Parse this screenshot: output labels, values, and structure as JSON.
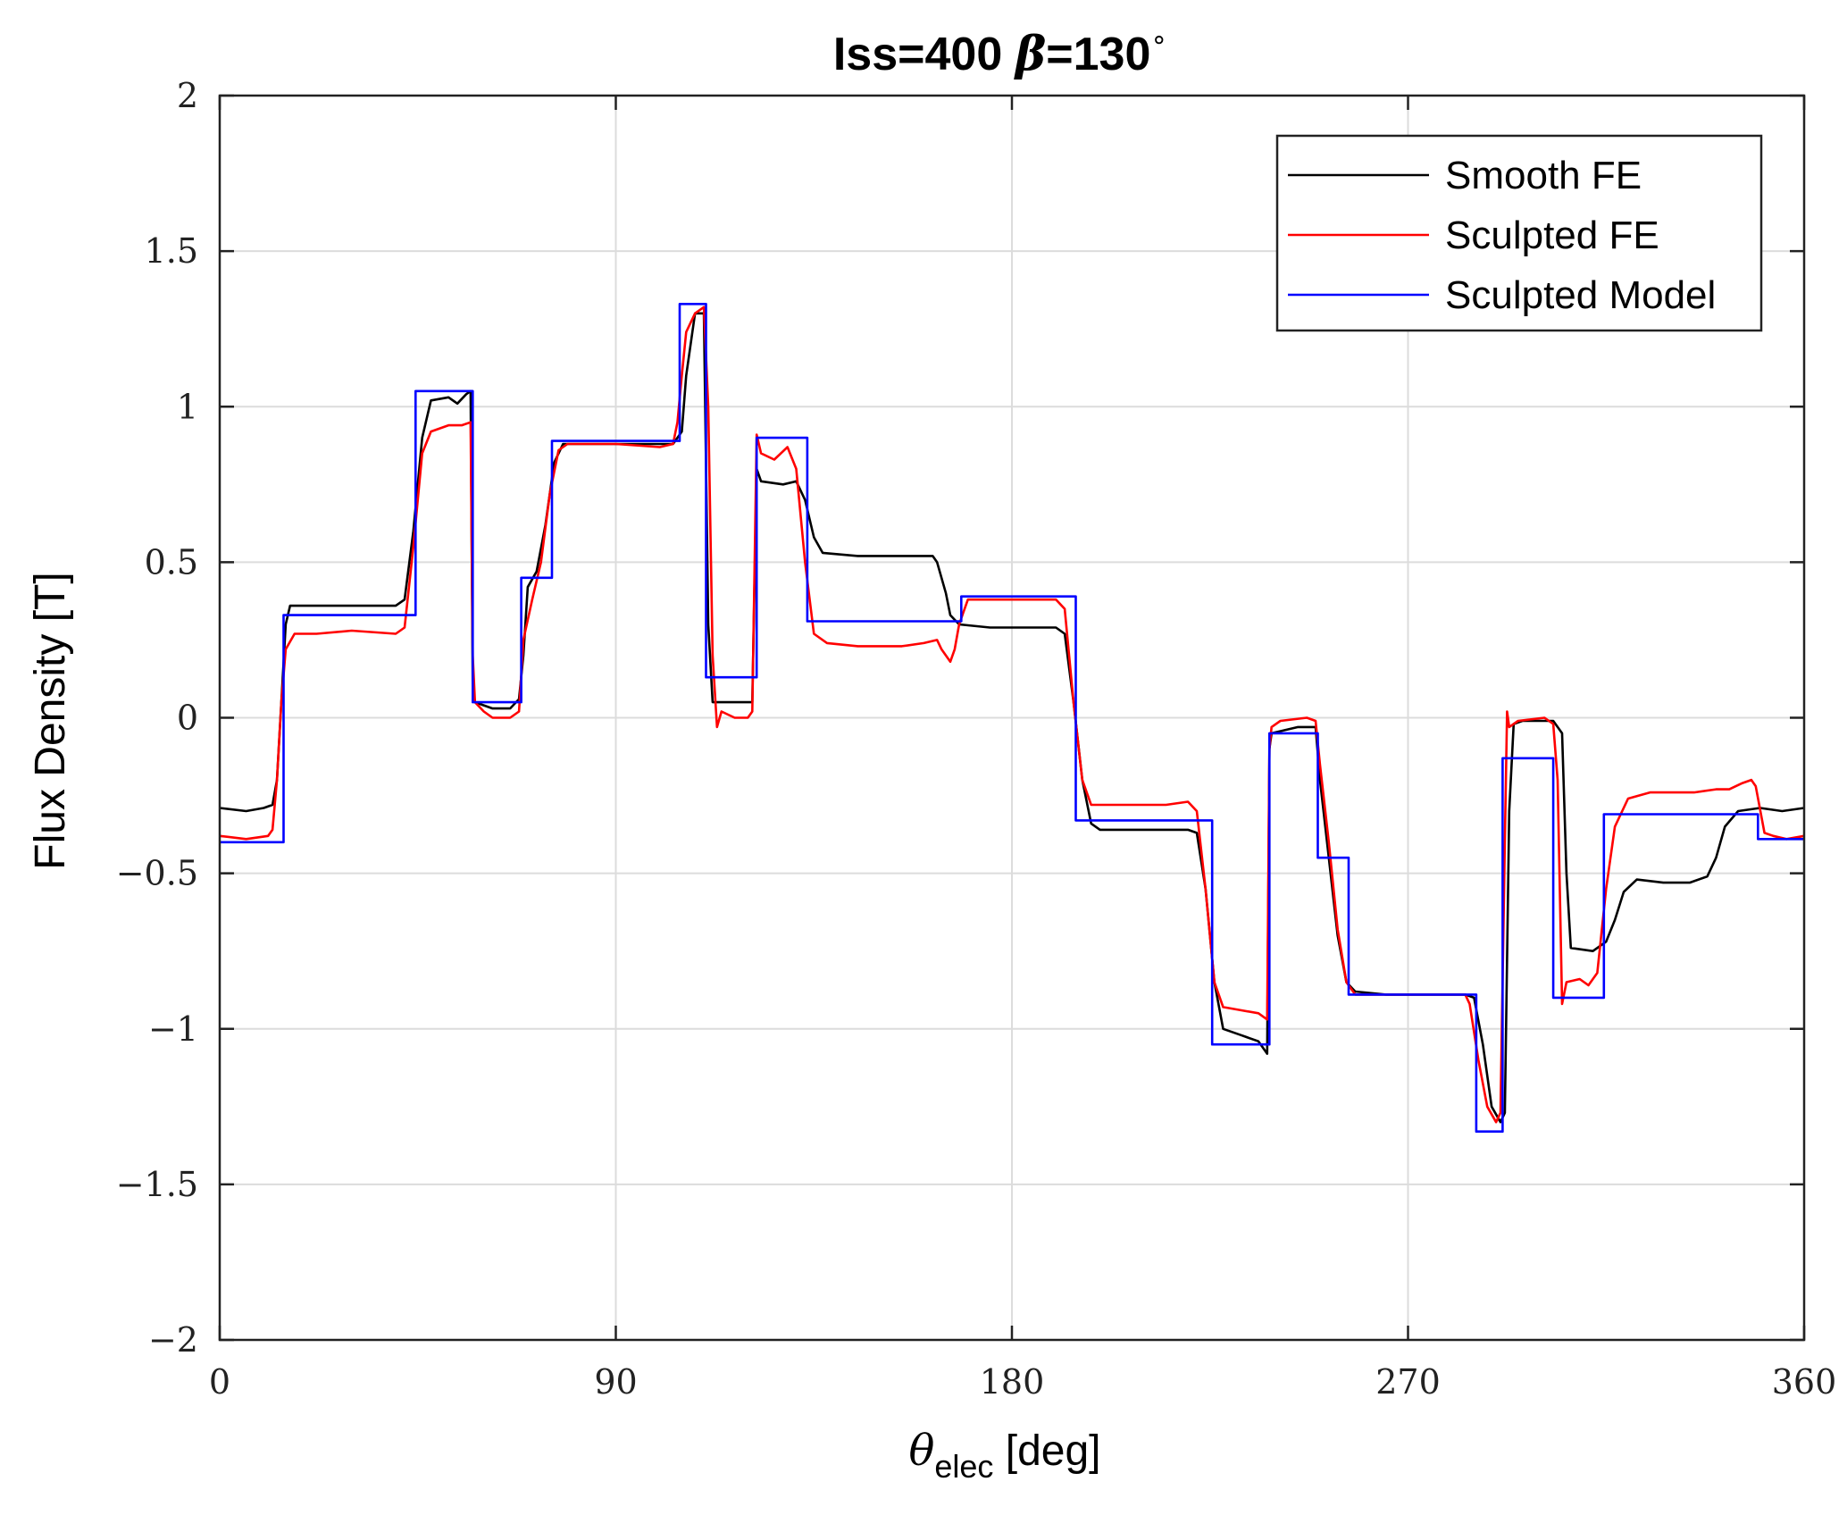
{
  "chart_data": {
    "type": "line",
    "title": "Iss=400",
    "title_symbol": "β",
    "title_suffix": "=130",
    "title_degree": "∘",
    "xlabel_symbol": "θ",
    "xlabel_sub": "elec",
    "xlabel_suffix": " [deg]",
    "ylabel": "Flux Density [T]",
    "xlim": [
      0,
      360
    ],
    "ylim": [
      -2,
      2
    ],
    "xticks": [
      0,
      90,
      180,
      270,
      360
    ],
    "yticks": [
      -2,
      -1.5,
      -1,
      -0.5,
      0,
      0.5,
      1,
      1.5,
      2
    ],
    "xtick_labels": [
      "0",
      "90",
      "180",
      "270",
      "360"
    ],
    "ytick_labels": [
      "−2",
      "−1.5",
      "−1",
      "−0.5",
      "0",
      "0.5",
      "1",
      "1.5",
      "2"
    ],
    "grid": true,
    "legend_position": "top-right",
    "series": [
      {
        "name": "Smooth FE",
        "color": "#000000",
        "points": [
          [
            0,
            -0.29
          ],
          [
            6,
            -0.3
          ],
          [
            10,
            -0.29
          ],
          [
            12,
            -0.28
          ],
          [
            13,
            -0.2
          ],
          [
            14,
            0.05
          ],
          [
            15,
            0.3
          ],
          [
            16,
            0.36
          ],
          [
            20,
            0.36
          ],
          [
            30,
            0.36
          ],
          [
            40,
            0.36
          ],
          [
            42,
            0.38
          ],
          [
            44,
            0.6
          ],
          [
            46,
            0.9
          ],
          [
            48,
            1.02
          ],
          [
            52,
            1.03
          ],
          [
            54,
            1.01
          ],
          [
            56,
            1.04
          ],
          [
            57,
            1.05
          ],
          [
            57.5,
            0.1
          ],
          [
            58,
            0.05
          ],
          [
            62,
            0.03
          ],
          [
            66,
            0.03
          ],
          [
            68,
            0.06
          ],
          [
            69,
            0.2
          ],
          [
            70,
            0.42
          ],
          [
            72,
            0.47
          ],
          [
            74,
            0.62
          ],
          [
            76,
            0.82
          ],
          [
            78,
            0.88
          ],
          [
            85,
            0.88
          ],
          [
            95,
            0.88
          ],
          [
            103,
            0.88
          ],
          [
            105,
            0.92
          ],
          [
            106,
            1.1
          ],
          [
            108,
            1.3
          ],
          [
            110,
            1.3
          ],
          [
            111,
            0.3
          ],
          [
            112,
            0.05
          ],
          [
            118,
            0.05
          ],
          [
            121,
            0.05
          ],
          [
            122,
            0.8
          ],
          [
            123,
            0.76
          ],
          [
            128,
            0.75
          ],
          [
            131,
            0.76
          ],
          [
            133,
            0.7
          ],
          [
            135,
            0.58
          ],
          [
            137,
            0.53
          ],
          [
            145,
            0.52
          ],
          [
            155,
            0.52
          ],
          [
            162,
            0.52
          ],
          [
            163,
            0.5
          ],
          [
            165,
            0.4
          ],
          [
            166,
            0.33
          ],
          [
            168,
            0.3
          ],
          [
            175,
            0.29
          ],
          [
            185,
            0.29
          ],
          [
            190,
            0.29
          ],
          [
            192,
            0.27
          ],
          [
            194,
            0.05
          ],
          [
            196,
            -0.2
          ],
          [
            198,
            -0.34
          ],
          [
            200,
            -0.36
          ],
          [
            210,
            -0.36
          ],
          [
            220,
            -0.36
          ],
          [
            222,
            -0.37
          ],
          [
            224,
            -0.55
          ],
          [
            226,
            -0.85
          ],
          [
            228,
            -1.0
          ],
          [
            232,
            -1.02
          ],
          [
            236,
            -1.04
          ],
          [
            238,
            -1.08
          ],
          [
            238.5,
            -0.1
          ],
          [
            239,
            -0.05
          ],
          [
            245,
            -0.03
          ],
          [
            249,
            -0.03
          ],
          [
            250,
            -0.2
          ],
          [
            252,
            -0.45
          ],
          [
            254,
            -0.7
          ],
          [
            256,
            -0.85
          ],
          [
            258,
            -0.88
          ],
          [
            265,
            -0.89
          ],
          [
            275,
            -0.89
          ],
          [
            283,
            -0.89
          ],
          [
            285,
            -0.9
          ],
          [
            287,
            -1.05
          ],
          [
            289,
            -1.25
          ],
          [
            291,
            -1.3
          ],
          [
            292,
            -1.27
          ],
          [
            293,
            -0.3
          ],
          [
            294,
            -0.02
          ],
          [
            296,
            -0.01
          ],
          [
            303,
            -0.01
          ],
          [
            305,
            -0.05
          ],
          [
            306,
            -0.5
          ],
          [
            307,
            -0.74
          ],
          [
            312,
            -0.75
          ],
          [
            315,
            -0.72
          ],
          [
            317,
            -0.65
          ],
          [
            319,
            -0.56
          ],
          [
            322,
            -0.52
          ],
          [
            328,
            -0.53
          ],
          [
            334,
            -0.53
          ],
          [
            338,
            -0.51
          ],
          [
            340,
            -0.45
          ],
          [
            342,
            -0.35
          ],
          [
            345,
            -0.3
          ],
          [
            350,
            -0.29
          ],
          [
            355,
            -0.3
          ],
          [
            360,
            -0.29
          ]
        ]
      },
      {
        "name": "Sculpted FE",
        "color": "#ff0000",
        "points": [
          [
            0,
            -0.38
          ],
          [
            6,
            -0.39
          ],
          [
            11,
            -0.38
          ],
          [
            12,
            -0.36
          ],
          [
            13,
            -0.2
          ],
          [
            14,
            0.05
          ],
          [
            15,
            0.22
          ],
          [
            17,
            0.27
          ],
          [
            22,
            0.27
          ],
          [
            30,
            0.28
          ],
          [
            40,
            0.27
          ],
          [
            42,
            0.29
          ],
          [
            44,
            0.55
          ],
          [
            46,
            0.85
          ],
          [
            48,
            0.92
          ],
          [
            52,
            0.94
          ],
          [
            55,
            0.94
          ],
          [
            57,
            0.95
          ],
          [
            57.5,
            0.2
          ],
          [
            58,
            0.05
          ],
          [
            60,
            0.02
          ],
          [
            62,
            0.0
          ],
          [
            66,
            0.0
          ],
          [
            68,
            0.02
          ],
          [
            69,
            0.25
          ],
          [
            71,
            0.38
          ],
          [
            73,
            0.5
          ],
          [
            75,
            0.72
          ],
          [
            77,
            0.86
          ],
          [
            79,
            0.88
          ],
          [
            90,
            0.88
          ],
          [
            100,
            0.87
          ],
          [
            103,
            0.88
          ],
          [
            104,
            0.95
          ],
          [
            105,
            1.1
          ],
          [
            106,
            1.24
          ],
          [
            108,
            1.3
          ],
          [
            110,
            1.32
          ],
          [
            111,
            1.0
          ],
          [
            112,
            0.2
          ],
          [
            113,
            -0.03
          ],
          [
            114,
            0.02
          ],
          [
            117,
            0.0
          ],
          [
            120,
            0.0
          ],
          [
            121,
            0.02
          ],
          [
            122,
            0.91
          ],
          [
            123,
            0.85
          ],
          [
            126,
            0.83
          ],
          [
            129,
            0.87
          ],
          [
            131,
            0.8
          ],
          [
            133,
            0.5
          ],
          [
            135,
            0.27
          ],
          [
            138,
            0.24
          ],
          [
            145,
            0.23
          ],
          [
            155,
            0.23
          ],
          [
            160,
            0.24
          ],
          [
            163,
            0.25
          ],
          [
            164,
            0.22
          ],
          [
            166,
            0.18
          ],
          [
            167,
            0.22
          ],
          [
            168,
            0.3
          ],
          [
            170,
            0.38
          ],
          [
            175,
            0.38
          ],
          [
            185,
            0.38
          ],
          [
            190,
            0.38
          ],
          [
            192,
            0.35
          ],
          [
            194,
            0.05
          ],
          [
            196,
            -0.2
          ],
          [
            198,
            -0.28
          ],
          [
            205,
            -0.28
          ],
          [
            215,
            -0.28
          ],
          [
            220,
            -0.27
          ],
          [
            222,
            -0.3
          ],
          [
            224,
            -0.55
          ],
          [
            226,
            -0.85
          ],
          [
            228,
            -0.93
          ],
          [
            232,
            -0.94
          ],
          [
            236,
            -0.95
          ],
          [
            238,
            -0.97
          ],
          [
            238.5,
            -0.1
          ],
          [
            239,
            -0.03
          ],
          [
            241,
            -0.01
          ],
          [
            247,
            0.0
          ],
          [
            249,
            -0.01
          ],
          [
            250,
            -0.15
          ],
          [
            252,
            -0.4
          ],
          [
            254,
            -0.68
          ],
          [
            256,
            -0.85
          ],
          [
            258,
            -0.89
          ],
          [
            265,
            -0.89
          ],
          [
            275,
            -0.89
          ],
          [
            283,
            -0.89
          ],
          [
            284,
            -0.92
          ],
          [
            286,
            -1.1
          ],
          [
            288,
            -1.25
          ],
          [
            290,
            -1.3
          ],
          [
            291,
            -1.27
          ],
          [
            292,
            -0.4
          ],
          [
            292.5,
            0.02
          ],
          [
            293,
            -0.03
          ],
          [
            295,
            -0.01
          ],
          [
            301,
            0.0
          ],
          [
            303,
            -0.02
          ],
          [
            304,
            -0.2
          ],
          [
            305,
            -0.92
          ],
          [
            306,
            -0.85
          ],
          [
            309,
            -0.84
          ],
          [
            311,
            -0.86
          ],
          [
            313,
            -0.82
          ],
          [
            315,
            -0.55
          ],
          [
            317,
            -0.35
          ],
          [
            320,
            -0.26
          ],
          [
            325,
            -0.24
          ],
          [
            335,
            -0.24
          ],
          [
            340,
            -0.23
          ],
          [
            343,
            -0.23
          ],
          [
            346,
            -0.21
          ],
          [
            348,
            -0.2
          ],
          [
            349,
            -0.22
          ],
          [
            351,
            -0.37
          ],
          [
            353,
            -0.38
          ],
          [
            356,
            -0.39
          ],
          [
            360,
            -0.38
          ]
        ]
      },
      {
        "name": "Sculpted Model",
        "color": "#0000ff",
        "points": [
          [
            0,
            -0.4
          ],
          [
            14.5,
            -0.4
          ],
          [
            14.5,
            0.33
          ],
          [
            44.5,
            0.33
          ],
          [
            44.5,
            1.05
          ],
          [
            57.5,
            1.05
          ],
          [
            57.5,
            0.05
          ],
          [
            68.5,
            0.05
          ],
          [
            68.5,
            0.45
          ],
          [
            75.5,
            0.45
          ],
          [
            75.5,
            0.89
          ],
          [
            104.5,
            0.89
          ],
          [
            104.5,
            1.33
          ],
          [
            110.5,
            1.33
          ],
          [
            110.5,
            0.13
          ],
          [
            122,
            0.13
          ],
          [
            122,
            0.9
          ],
          [
            133.5,
            0.9
          ],
          [
            133.5,
            0.31
          ],
          [
            168.5,
            0.31
          ],
          [
            168.5,
            0.39
          ],
          [
            194.5,
            0.39
          ],
          [
            194.5,
            -0.33
          ],
          [
            225.5,
            -0.33
          ],
          [
            225.5,
            -1.05
          ],
          [
            238.5,
            -1.05
          ],
          [
            238.5,
            -0.05
          ],
          [
            249.5,
            -0.05
          ],
          [
            249.5,
            -0.45
          ],
          [
            256.5,
            -0.45
          ],
          [
            256.5,
            -0.89
          ],
          [
            285.5,
            -0.89
          ],
          [
            285.5,
            -1.33
          ],
          [
            291.5,
            -1.33
          ],
          [
            291.5,
            -0.13
          ],
          [
            303,
            -0.13
          ],
          [
            303,
            -0.9
          ],
          [
            314.5,
            -0.9
          ],
          [
            314.5,
            -0.31
          ],
          [
            349.5,
            -0.31
          ],
          [
            349.5,
            -0.39
          ],
          [
            360,
            -0.39
          ]
        ]
      }
    ]
  }
}
